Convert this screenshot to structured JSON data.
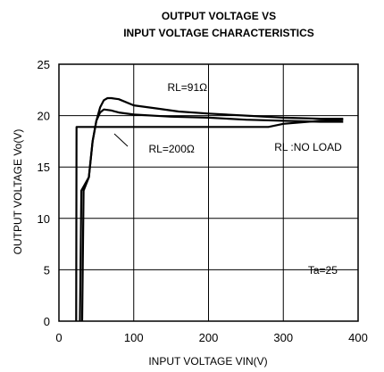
{
  "chart_data": {
    "type": "line",
    "title_lines": [
      "OUTPUT VOLTAGE VS",
      "INPUT VOLTAGE CHARACTERISTICS"
    ],
    "xlabel": "INPUT VOLTAGE  VIN(V)",
    "ylabel": "OUTPUT VOLTAGE  Vo(V)",
    "xlim": [
      0,
      400
    ],
    "ylim": [
      0,
      25
    ],
    "xticks": [
      0,
      100,
      200,
      300,
      400
    ],
    "yticks": [
      0,
      5,
      10,
      15,
      20,
      25
    ],
    "grid": true,
    "series": [
      {
        "name": "RL=91Ω",
        "x": [
          28,
          30,
          40,
          45,
          50,
          55,
          60,
          65,
          70,
          80,
          100,
          130,
          160,
          200,
          250,
          300,
          350,
          380
        ],
        "y": [
          0,
          12.7,
          14,
          17.5,
          19.5,
          20.8,
          21.5,
          21.7,
          21.7,
          21.6,
          21,
          20.7,
          20.4,
          20.2,
          20,
          19.8,
          19.7,
          19.7
        ]
      },
      {
        "name": "RL=200Ω",
        "x": [
          31,
          33,
          40,
          45,
          50,
          55,
          60,
          70,
          80,
          100,
          150,
          200,
          250,
          300,
          350,
          380
        ],
        "y": [
          0,
          12.7,
          14,
          17.5,
          19.5,
          20.3,
          20.6,
          20.5,
          20.3,
          20.1,
          19.9,
          19.8,
          19.6,
          19.5,
          19.4,
          19.4
        ]
      },
      {
        "name": "RL :NO LOAD",
        "x": [
          23,
          23.5,
          26,
          50,
          100,
          200,
          280,
          300,
          350,
          380
        ],
        "y": [
          0,
          18.9,
          18.9,
          18.9,
          18.9,
          18.9,
          18.9,
          19.2,
          19.5,
          19.6
        ]
      }
    ],
    "annotations": [
      {
        "text": "RL=91Ω",
        "x": 145,
        "y": 22.4
      },
      {
        "text": "RL=200Ω",
        "x": 120,
        "y": 16.4
      },
      {
        "text": "RL :NO LOAD",
        "x": 288,
        "y": 16.6
      },
      {
        "text": "Ta=25",
        "x": 333,
        "y": 4.6
      }
    ]
  }
}
